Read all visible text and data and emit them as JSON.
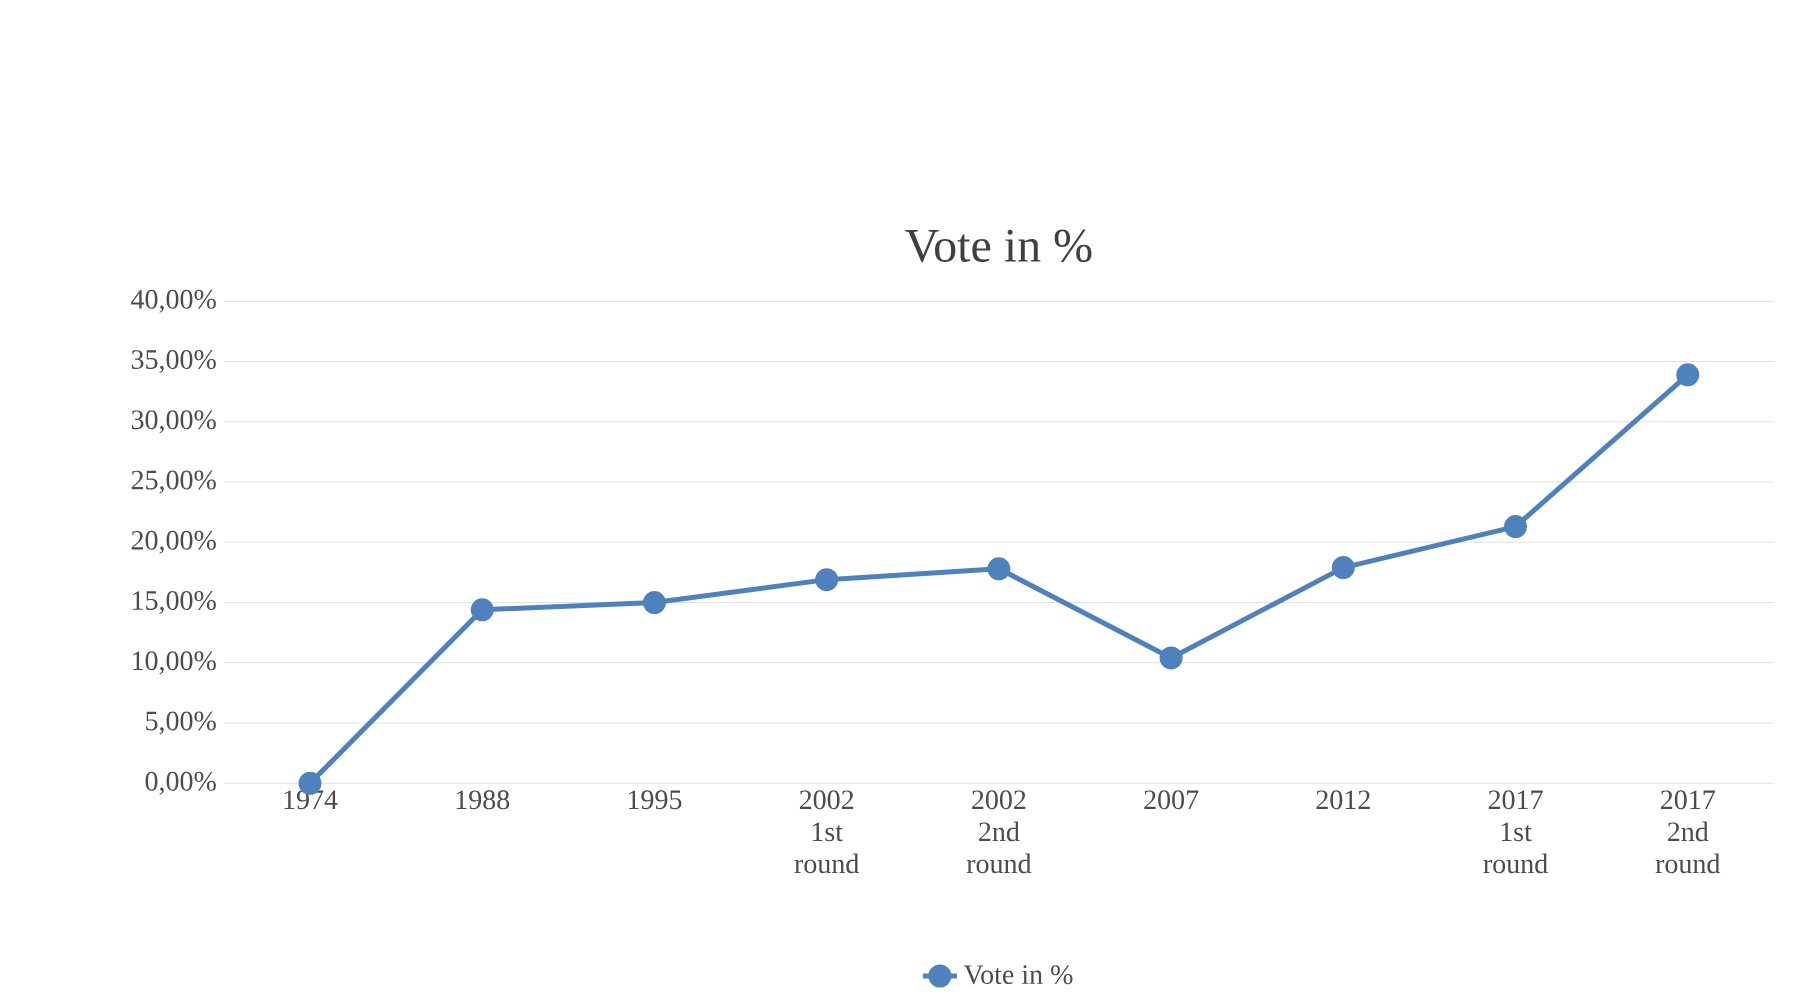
{
  "chart_data": {
    "type": "line",
    "title": "Vote in %",
    "categories": [
      "1974",
      "1988",
      "1995",
      "2002 1st round",
      "2002 2nd round",
      "2007",
      "2012",
      "2017 1st round",
      "2017 2nd round"
    ],
    "series": [
      {
        "name": "Vote in %",
        "color": "#4f81bd",
        "values": [
          0,
          14.4,
          15.0,
          16.9,
          17.8,
          10.4,
          17.9,
          21.3,
          33.9
        ]
      }
    ],
    "ylim": [
      0,
      40
    ],
    "yticks": [
      {
        "value": 0,
        "label": "0,00%"
      },
      {
        "value": 5,
        "label": "5,00%"
      },
      {
        "value": 10,
        "label": "10,00%"
      },
      {
        "value": 15,
        "label": "15,00%"
      },
      {
        "value": 20,
        "label": "20,00%"
      },
      {
        "value": 25,
        "label": "25,00%"
      },
      {
        "value": 30,
        "label": "30,00%"
      },
      {
        "value": 35,
        "label": "35,00%"
      },
      {
        "value": 40,
        "label": "40,00%"
      }
    ],
    "grid": "y",
    "legend": "bottom",
    "marker": "circle",
    "line_style": "solid"
  }
}
